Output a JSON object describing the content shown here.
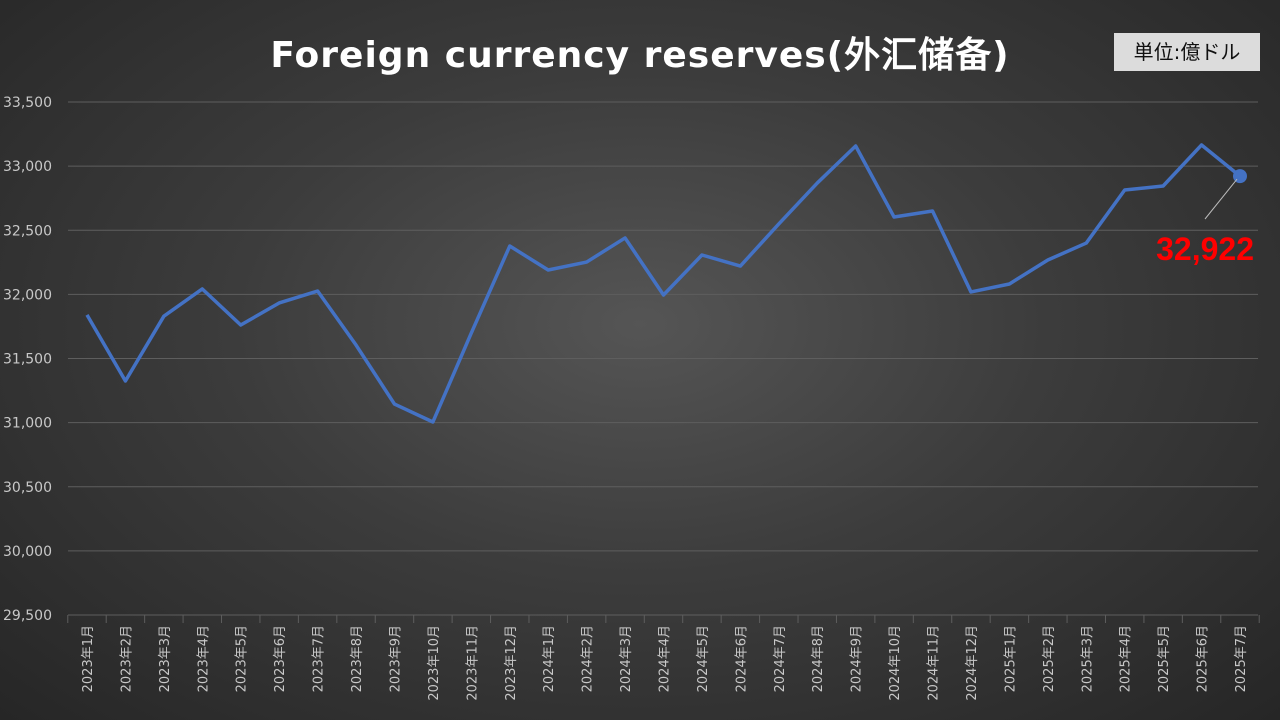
{
  "chart_data": {
    "type": "line",
    "title": "Foreign currency reserves(外汇储备)",
    "unit_label": "単位:億ドル",
    "categories": [
      "2023年1月",
      "2023年2月",
      "2023年3月",
      "2023年4月",
      "2023年5月",
      "2023年6月",
      "2023年7月",
      "2023年8月",
      "2023年9月",
      "2023年10月",
      "2023年11月",
      "2023年12月",
      "2024年1月",
      "2024年2月",
      "2024年3月",
      "2024年4月",
      "2024年5月",
      "2024年6月",
      "2024年7月",
      "2024年8月",
      "2024年9月",
      "2024年10月",
      "2024年11月",
      "2024年12月",
      "2025年1月",
      "2025年2月",
      "2025年3月",
      "2025年4月",
      "2025年5月",
      "2025年6月",
      "2025年7月"
    ],
    "values": [
      31840,
      31325,
      31830,
      32042,
      31761,
      31933,
      32026,
      31605,
      31145,
      31005,
      31699,
      32377,
      32190,
      32252,
      32440,
      31995,
      32307,
      32221,
      32549,
      32868,
      33157,
      32603,
      32650,
      32019,
      32081,
      32268,
      32400,
      32814,
      32845,
      33165,
      32922
    ],
    "ylim": [
      29500,
      33500
    ],
    "yticks": [
      29500,
      30000,
      30500,
      31000,
      31500,
      32000,
      32500,
      33000,
      33500
    ],
    "ytick_labels": [
      "29,500",
      "30,000",
      "30,500",
      "31,000",
      "31,500",
      "32,000",
      "32,500",
      "33,000",
      "33,500"
    ],
    "grid": true,
    "line_color": "#4472c4",
    "last_value_label": "32,922",
    "last_value_color": "#ff0000"
  }
}
